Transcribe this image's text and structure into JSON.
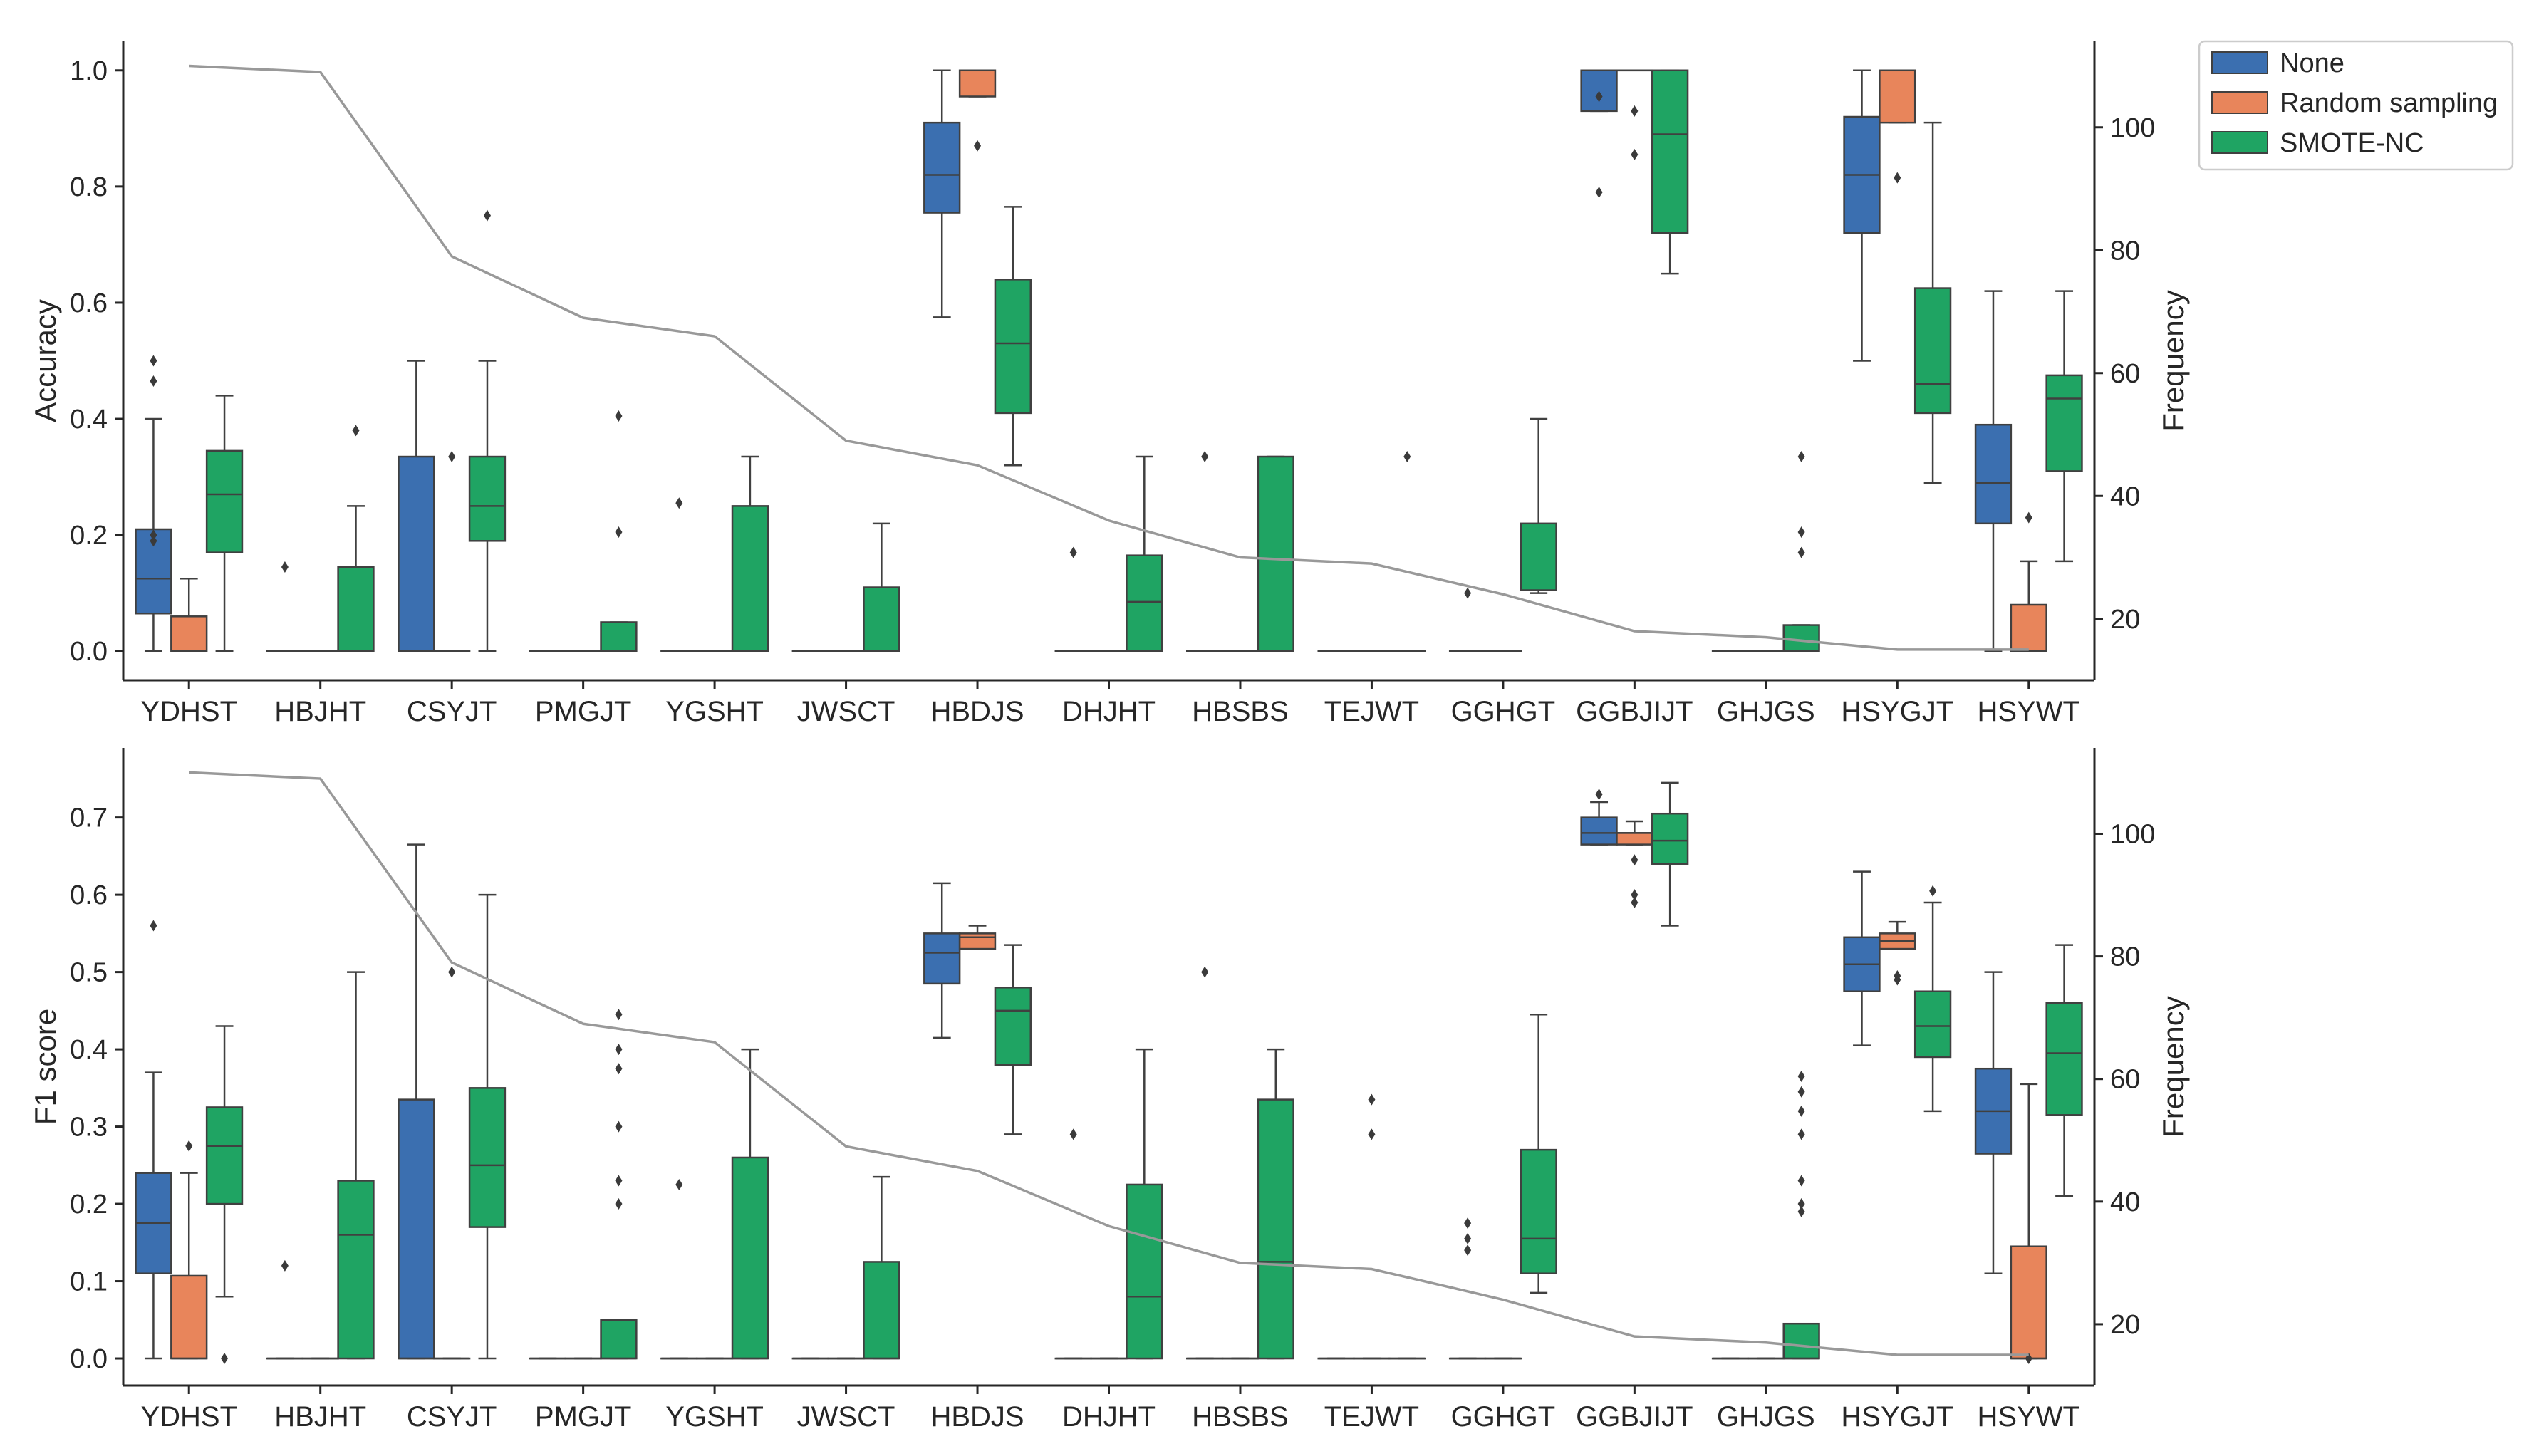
{
  "chart_data": {
    "type": "box+line",
    "groups": [
      "None",
      "Random sampling",
      "SMOTE-NC"
    ],
    "colors": {
      "None": "#3b6fb0",
      "Random sampling": "#e8855b",
      "SMOTE-NC": "#1fa463",
      "frequency_line": "#999999",
      "axes": "#262626",
      "box_edge": "#404040"
    },
    "categories": [
      "YDHST",
      "HBJHT",
      "CSYJT",
      "PMGJT",
      "YGSHT",
      "JWSCT",
      "HBDJS",
      "DHJHT",
      "HBSBS",
      "TEJWT",
      "GGHGT",
      "GGBJIJT",
      "GHJGS",
      "HSYGJT",
      "HSYWT"
    ],
    "frequency": [
      110,
      109,
      79,
      69,
      66,
      49,
      45,
      36,
      30,
      29,
      24,
      18,
      17,
      15,
      15
    ],
    "legend": {
      "entries": [
        "None",
        "Random sampling",
        "SMOTE-NC"
      ],
      "placement": "top-right"
    },
    "panels": [
      {
        "ylabel": "Accuracy",
        "y2label": "Frequency",
        "ylim": [
          -0.05,
          1.05
        ],
        "yticks": [
          "0.0",
          "0.2",
          "0.4",
          "0.6",
          "0.8",
          "1.0"
        ],
        "ytick_values": [
          0,
          0.2,
          0.4,
          0.6,
          0.8,
          1.0
        ],
        "y2lim": [
          10,
          114
        ],
        "y2ticks": [
          "20",
          "40",
          "60",
          "80",
          "100"
        ],
        "y2tick_values": [
          20,
          40,
          60,
          80,
          100
        ],
        "boxes": [
          [
            [
              0,
              0.065,
              0.125,
              0.21,
              0.4,
              [
                0.5,
                0.465,
                0.2,
                0.19
              ]
            ],
            [
              0,
              0,
              0,
              0.06,
              0.125,
              []
            ],
            [
              0,
              0.17,
              0.27,
              0.345,
              0.44,
              []
            ]
          ],
          [
            [
              0,
              0,
              0,
              0,
              0,
              [
                0.145
              ]
            ],
            [
              0,
              0,
              0,
              0,
              0,
              []
            ],
            [
              0,
              0,
              0,
              0.145,
              0.25,
              [
                0.38
              ]
            ]
          ],
          [
            [
              0,
              0,
              0,
              0.335,
              0.5,
              []
            ],
            [
              0,
              0,
              0,
              0,
              0,
              [
                0.335
              ]
            ],
            [
              0,
              0.19,
              0.25,
              0.335,
              0.5,
              [
                0.75
              ]
            ]
          ],
          [
            [
              0,
              0,
              0,
              0,
              0,
              []
            ],
            [
              0,
              0,
              0,
              0,
              0,
              []
            ],
            [
              0,
              0,
              0,
              0.05,
              0.05,
              [
                0.405,
                0.205
              ]
            ]
          ],
          [
            [
              0,
              0,
              0,
              0,
              0,
              [
                0.255
              ]
            ],
            [
              0,
              0,
              0,
              0,
              0,
              []
            ],
            [
              0,
              0,
              0,
              0.25,
              0.335,
              []
            ]
          ],
          [
            [
              0,
              0,
              0,
              0,
              0,
              []
            ],
            [
              0,
              0,
              0,
              0,
              0,
              []
            ],
            [
              0,
              0,
              0,
              0.11,
              0.22,
              []
            ]
          ],
          [
            [
              0.575,
              0.755,
              0.82,
              0.91,
              1.0,
              []
            ],
            [
              0.955,
              0.955,
              1.0,
              1.0,
              1.0,
              [
                0.87
              ]
            ],
            [
              0.32,
              0.41,
              0.53,
              0.64,
              0.765,
              []
            ]
          ],
          [
            [
              0,
              0,
              0,
              0,
              0,
              [
                0.17
              ]
            ],
            [
              0,
              0,
              0,
              0,
              0,
              []
            ],
            [
              0,
              0,
              0.085,
              0.165,
              0.335,
              []
            ]
          ],
          [
            [
              0,
              0,
              0,
              0,
              0,
              [
                0.335
              ]
            ],
            [
              0,
              0,
              0,
              0,
              0,
              []
            ],
            [
              0,
              0,
              0,
              0.335,
              0.335,
              []
            ]
          ],
          [
            [
              0,
              0,
              0,
              0,
              0,
              []
            ],
            [
              0,
              0,
              0,
              0,
              0,
              []
            ],
            [
              0,
              0,
              0,
              0,
              0,
              [
                0.335
              ]
            ]
          ],
          [
            [
              0,
              0,
              0,
              0,
              0,
              [
                0.1
              ]
            ],
            [
              0,
              0,
              0,
              0,
              0,
              []
            ],
            [
              0.1,
              0.105,
              0.105,
              0.22,
              0.4,
              []
            ]
          ],
          [
            [
              0.93,
              0.93,
              1.0,
              1.0,
              1.0,
              [
                0.955,
                0.79
              ]
            ],
            [
              1.0,
              1.0,
              1.0,
              1.0,
              1.0,
              [
                0.93,
                0.855
              ]
            ],
            [
              0.65,
              0.72,
              0.89,
              1.0,
              1.0,
              []
            ]
          ],
          [
            [
              0,
              0,
              0,
              0,
              0,
              []
            ],
            [
              0,
              0,
              0,
              0,
              0,
              []
            ],
            [
              0,
              0,
              0,
              0.045,
              0.045,
              [
                0.335,
                0.205,
                0.17
              ]
            ]
          ],
          [
            [
              0.5,
              0.72,
              0.82,
              0.92,
              1.0,
              []
            ],
            [
              0.91,
              0.91,
              1.0,
              1.0,
              1.0,
              [
                0.815
              ]
            ],
            [
              0.29,
              0.41,
              0.46,
              0.625,
              0.91,
              []
            ]
          ],
          [
            [
              0,
              0.22,
              0.29,
              0.39,
              0.62,
              []
            ],
            [
              0,
              0,
              0,
              0.08,
              0.155,
              [
                0.23
              ]
            ],
            [
              0.155,
              0.31,
              0.435,
              0.475,
              0.62,
              []
            ]
          ]
        ]
      },
      {
        "ylabel": "F1 score",
        "y2label": "Frequency",
        "ylim": [
          -0.035,
          0.79
        ],
        "yticks": [
          "0.0",
          "0.1",
          "0.2",
          "0.3",
          "0.4",
          "0.5",
          "0.6",
          "0.7"
        ],
        "ytick_values": [
          0,
          0.1,
          0.2,
          0.3,
          0.4,
          0.5,
          0.6,
          0.7
        ],
        "y2lim": [
          10,
          114
        ],
        "y2ticks": [
          "20",
          "40",
          "60",
          "80",
          "100"
        ],
        "y2tick_values": [
          20,
          40,
          60,
          80,
          100
        ],
        "boxes": [
          [
            [
              0,
              0.11,
              0.175,
              0.24,
              0.37,
              [
                0.56
              ]
            ],
            [
              0,
              0,
              0,
              0.107,
              0.24,
              [
                0.275
              ]
            ],
            [
              0.08,
              0.2,
              0.275,
              0.325,
              0.43,
              [
                0.0
              ]
            ]
          ],
          [
            [
              0,
              0,
              0,
              0,
              0,
              [
                0.12
              ]
            ],
            [
              0,
              0,
              0,
              0,
              0,
              []
            ],
            [
              0,
              0,
              0.16,
              0.23,
              0.5,
              []
            ]
          ],
          [
            [
              0,
              0,
              0,
              0.335,
              0.665,
              []
            ],
            [
              0,
              0,
              0,
              0,
              0,
              [
                0.5
              ]
            ],
            [
              0,
              0.17,
              0.25,
              0.35,
              0.6,
              []
            ]
          ],
          [
            [
              0,
              0,
              0,
              0,
              0,
              []
            ],
            [
              0,
              0,
              0,
              0,
              0,
              []
            ],
            [
              0,
              0,
              0,
              0.05,
              0.05,
              [
                0.445,
                0.4,
                0.375,
                0.3,
                0.23,
                0.2
              ]
            ]
          ],
          [
            [
              0,
              0,
              0,
              0,
              0,
              [
                0.225
              ]
            ],
            [
              0,
              0,
              0,
              0,
              0,
              []
            ],
            [
              0,
              0,
              0,
              0.26,
              0.4,
              []
            ]
          ],
          [
            [
              0,
              0,
              0,
              0,
              0,
              []
            ],
            [
              0,
              0,
              0,
              0,
              0,
              []
            ],
            [
              0,
              0,
              0,
              0.125,
              0.235,
              []
            ]
          ],
          [
            [
              0.415,
              0.485,
              0.525,
              0.55,
              0.615,
              []
            ],
            [
              0.53,
              0.53,
              0.545,
              0.55,
              0.56,
              []
            ],
            [
              0.29,
              0.38,
              0.45,
              0.48,
              0.535,
              []
            ]
          ],
          [
            [
              0,
              0,
              0,
              0,
              0,
              [
                0.29
              ]
            ],
            [
              0,
              0,
              0,
              0,
              0,
              []
            ],
            [
              0,
              0,
              0.08,
              0.225,
              0.4,
              []
            ]
          ],
          [
            [
              0,
              0,
              0,
              0,
              0,
              [
                0.5
              ]
            ],
            [
              0,
              0,
              0,
              0,
              0,
              []
            ],
            [
              0,
              0,
              0.125,
              0.335,
              0.4,
              []
            ]
          ],
          [
            [
              0,
              0,
              0,
              0,
              0,
              []
            ],
            [
              0,
              0,
              0,
              0,
              0,
              [
                0.335,
                0.29
              ]
            ],
            [
              0,
              0,
              0,
              0,
              0,
              []
            ]
          ],
          [
            [
              0,
              0,
              0,
              0,
              0,
              [
                0.175,
                0.155,
                0.14
              ]
            ],
            [
              0,
              0,
              0,
              0,
              0,
              []
            ],
            [
              0.085,
              0.11,
              0.155,
              0.27,
              0.445,
              []
            ]
          ],
          [
            [
              0.665,
              0.665,
              0.68,
              0.7,
              0.72,
              [
                0.73
              ]
            ],
            [
              0.665,
              0.665,
              0.68,
              0.68,
              0.695,
              [
                0.645,
                0.6,
                0.59
              ]
            ],
            [
              0.56,
              0.64,
              0.67,
              0.705,
              0.745,
              []
            ]
          ],
          [
            [
              0,
              0,
              0,
              0,
              0,
              []
            ],
            [
              0,
              0,
              0,
              0,
              0,
              []
            ],
            [
              0,
              0,
              0,
              0.045,
              0.045,
              [
                0.365,
                0.345,
                0.32,
                0.29,
                0.23,
                0.2,
                0.19
              ]
            ]
          ],
          [
            [
              0.405,
              0.475,
              0.51,
              0.545,
              0.63,
              []
            ],
            [
              0.53,
              0.53,
              0.54,
              0.55,
              0.565,
              [
                0.49,
                0.495
              ]
            ],
            [
              0.32,
              0.39,
              0.43,
              0.475,
              0.59,
              [
                0.605
              ]
            ]
          ],
          [
            [
              0.11,
              0.265,
              0.32,
              0.375,
              0.5,
              []
            ],
            [
              0,
              0,
              0,
              0.145,
              0.355,
              [
                0.0
              ]
            ],
            [
              0.21,
              0.315,
              0.395,
              0.46,
              0.535,
              []
            ]
          ]
        ]
      }
    ]
  }
}
